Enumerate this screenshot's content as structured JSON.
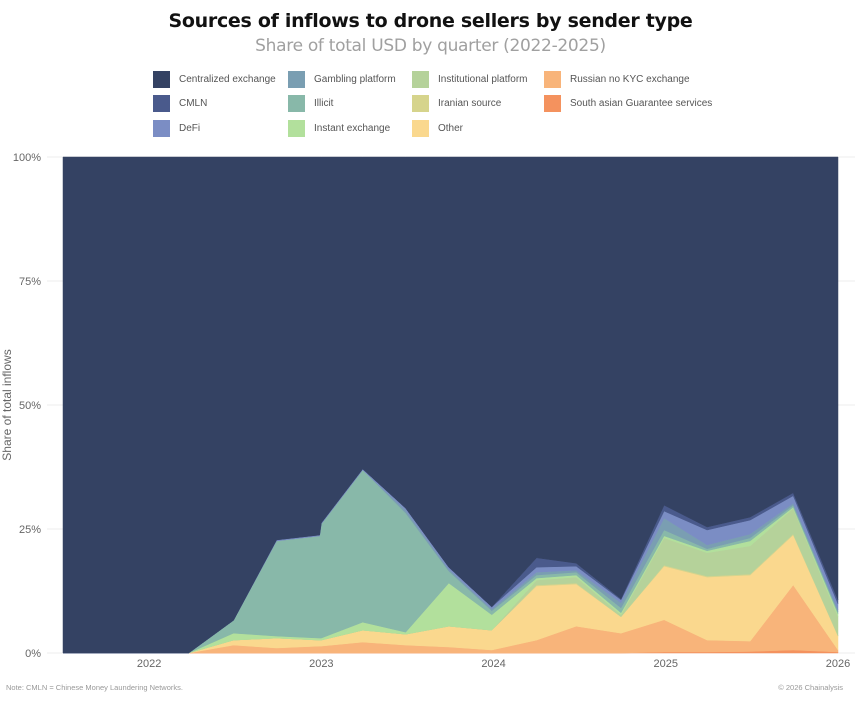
{
  "chart_data": {
    "type": "area",
    "stacked": true,
    "normalized": true,
    "title": "Sources of inflows to drone sellers by sender type",
    "subtitle": "Share of total USD by quarter (2022-2025)",
    "xlabel": "",
    "ylabel": "Share of total inflows",
    "xlim": [
      2021.5,
      2026.0
    ],
    "ylim": [
      0,
      100
    ],
    "x_ticks": [
      2022,
      2023,
      2024,
      2025,
      2026
    ],
    "x_tick_labels": [
      "2022",
      "2023",
      "2024",
      "2025",
      "2026"
    ],
    "y_ticks": [
      0,
      25,
      50,
      75,
      100
    ],
    "y_tick_labels": [
      "0%",
      "25%",
      "50%",
      "75%",
      "100%"
    ],
    "grid": true,
    "legend_position": "top",
    "x": [
      2021.5,
      2022.23,
      2022.49,
      2022.74,
      2022.99,
      2023.0,
      2023.24,
      2023.49,
      2023.74,
      2023.99,
      2024.25,
      2024.48,
      2024.74,
      2024.99,
      2025.24,
      2025.49,
      2025.74,
      2026.0
    ],
    "series": [
      {
        "name": "South asian Guarantee services",
        "color": "#f4925e",
        "values": [
          0,
          0,
          0,
          0,
          0,
          0,
          0,
          0,
          0,
          0,
          0,
          0,
          0,
          0.2,
          0.2,
          0.3,
          0.6,
          0.2
        ]
      },
      {
        "name": "Russian no KYC exchange",
        "color": "#f8b47a",
        "values": [
          0,
          0,
          1.6,
          1.0,
          1.4,
          1.4,
          2.2,
          1.6,
          1.2,
          0.6,
          2.6,
          5.4,
          4.0,
          6.5,
          2.4,
          2.1,
          13.1,
          0.4
        ]
      },
      {
        "name": "Other",
        "color": "#fad88e",
        "values": [
          0,
          0,
          1.0,
          2.0,
          1.2,
          1.2,
          2.4,
          2.2,
          4.2,
          4.0,
          10.9,
          8.5,
          3.3,
          10.8,
          12.7,
          13.3,
          10.1,
          2.8
        ]
      },
      {
        "name": "Iranian source",
        "color": "#d6d48c",
        "values": [
          0,
          0,
          0,
          0,
          0,
          0,
          0,
          0,
          0,
          0,
          0.2,
          0.2,
          0,
          0.2,
          0.2,
          0.2,
          0.2,
          0.1
        ]
      },
      {
        "name": "Institutional platform",
        "color": "#b5d29a",
        "values": [
          0,
          0,
          0,
          0,
          0,
          0,
          0,
          0,
          0,
          0,
          1.0,
          1.2,
          0.4,
          5.5,
          4.7,
          5.7,
          5.2,
          3.8
        ]
      },
      {
        "name": "Instant exchange",
        "color": "#b2e09c",
        "values": [
          0,
          0,
          1.4,
          0.4,
          0.4,
          0.4,
          1.6,
          0.4,
          8.7,
          3.1,
          0.4,
          0.4,
          0.4,
          0.4,
          0.4,
          1.0,
          0.2,
          0.6
        ]
      },
      {
        "name": "Illicit",
        "color": "#88b8a9",
        "values": [
          0,
          0,
          2.6,
          19.2,
          20.6,
          23.0,
          30.7,
          24.0,
          2.4,
          0.8,
          0.6,
          0.6,
          1.0,
          1.2,
          0.4,
          0.6,
          0.4,
          0.4
        ]
      },
      {
        "name": "Gambling platform",
        "color": "#7a9eb2",
        "values": [
          0,
          0,
          0,
          0,
          0,
          0,
          0,
          0.6,
          0.4,
          0.4,
          0.6,
          0.4,
          1.0,
          2.4,
          0.8,
          0.8,
          0.4,
          0.4
        ]
      },
      {
        "name": "DeFi",
        "color": "#7b8dc4",
        "values": [
          0,
          0,
          0,
          0.2,
          0.2,
          0.2,
          0.2,
          0.4,
          0.4,
          0.4,
          1.0,
          0.8,
          0.6,
          1.4,
          3.0,
          2.8,
          1.5,
          1.2
        ]
      },
      {
        "name": "CMLN",
        "color": "#4a5a8c",
        "values": [
          0,
          0,
          0,
          0,
          0,
          0,
          0,
          0,
          0,
          0,
          1.9,
          0.6,
          0.2,
          1.2,
          0.6,
          0.6,
          0.6,
          0.8
        ]
      },
      {
        "name": "Centralized exchange",
        "color": "#344263",
        "values": [
          100,
          100,
          93.4,
          77.2,
          76.2,
          73.8,
          62.9,
          70.8,
          82.7,
          90.7,
          80.8,
          81.9,
          89.1,
          70.2,
          74.6,
          72.6,
          67.7,
          89.3
        ]
      }
    ]
  },
  "legend": [
    {
      "label": "Centralized exchange",
      "color": "#344263"
    },
    {
      "label": "CMLN",
      "color": "#4a5a8c"
    },
    {
      "label": "DeFi",
      "color": "#7b8dc4"
    },
    {
      "label": "Gambling platform",
      "color": "#7a9eb2"
    },
    {
      "label": "Illicit",
      "color": "#88b8a9"
    },
    {
      "label": "Instant exchange",
      "color": "#b2e09c"
    },
    {
      "label": "Institutional platform",
      "color": "#b5d29a"
    },
    {
      "label": "Iranian source",
      "color": "#d6d48c"
    },
    {
      "label": "Other",
      "color": "#fad88e"
    },
    {
      "label": "Russian no KYC exchange",
      "color": "#f8b47a"
    },
    {
      "label": "South asian Guarantee services",
      "color": "#f4925e"
    }
  ],
  "footer": {
    "note": "Note: CMLN = Chinese Money Laundering Networks.",
    "copyright": "© 2026 Chainalysis"
  }
}
